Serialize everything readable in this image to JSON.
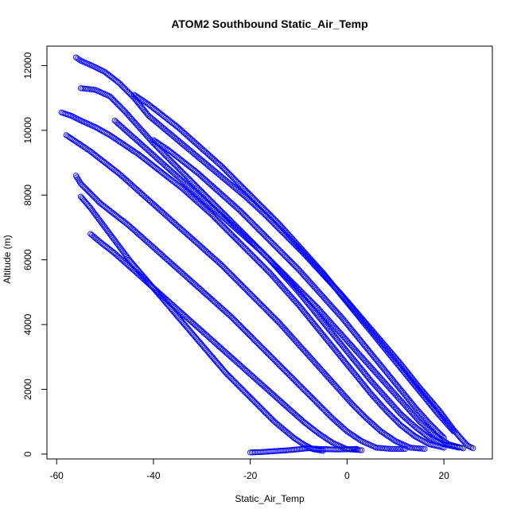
{
  "chart_data": {
    "type": "scatter",
    "title": "ATOM2 Southbound Static_Air_Temp",
    "xlabel": "Static_Air_Temp",
    "ylabel": "Altitude (m)",
    "xlim": [
      -62,
      30
    ],
    "ylim": [
      -150,
      12600
    ],
    "x_ticks": [
      -60,
      -40,
      -20,
      0,
      20
    ],
    "y_ticks": [
      0,
      2000,
      4000,
      6000,
      8000,
      10000,
      12000
    ],
    "point_color": "#0000ff",
    "marker": "open-circle",
    "grid": false,
    "legend": "none",
    "series": [
      {
        "x": [
          -56,
          -55,
          -52,
          -50,
          -47,
          -44,
          -41,
          -37,
          -33,
          -29,
          -25,
          -21,
          -17,
          -13,
          -9,
          -5,
          -1,
          3,
          7,
          11,
          15,
          19,
          22,
          24,
          25,
          26
        ],
        "y": [
          12250,
          12150,
          11950,
          11800,
          11450,
          11000,
          10450,
          9950,
          9450,
          8950,
          8450,
          7950,
          7400,
          6800,
          6200,
          5550,
          4900,
          4200,
          3500,
          2800,
          2050,
          1350,
          750,
          400,
          250,
          180
        ]
      },
      {
        "x": [
          -55,
          -52,
          -49,
          -46,
          -43,
          -40,
          -37,
          -34,
          -31,
          -28,
          -25,
          -22,
          -19,
          -16,
          -13,
          -10,
          -7,
          -4,
          -1,
          2,
          5,
          8,
          11,
          14,
          17,
          20,
          23
        ],
        "y": [
          11300,
          11250,
          11050,
          10600,
          10100,
          9600,
          9150,
          8700,
          8250,
          7800,
          7350,
          6900,
          6450,
          6000,
          5500,
          5000,
          4450,
          3900,
          3350,
          2800,
          2250,
          1750,
          1250,
          850,
          500,
          300,
          200
        ]
      },
      {
        "x": [
          -59,
          -57,
          -55,
          -52,
          -49,
          -46,
          -43,
          -40,
          -37,
          -34,
          -31,
          -28,
          -25,
          -22,
          -19,
          -16,
          -13,
          -10,
          -7,
          -4,
          -1,
          2,
          5,
          8,
          11,
          14,
          17,
          20
        ],
        "y": [
          10550,
          10450,
          10300,
          10100,
          9850,
          9550,
          9250,
          8900,
          8550,
          8200,
          7800,
          7400,
          6950,
          6500,
          6050,
          5600,
          5100,
          4600,
          4050,
          3500,
          2950,
          2400,
          1850,
          1350,
          900,
          550,
          300,
          200
        ]
      },
      {
        "x": [
          -58,
          -56,
          -53,
          -50,
          -47,
          -44,
          -41,
          -38,
          -35,
          -32,
          -29,
          -26,
          -23,
          -20,
          -17,
          -14,
          -11,
          -8,
          -5,
          -2,
          1,
          4,
          7,
          10,
          13,
          16
        ],
        "y": [
          9850,
          9650,
          9350,
          9000,
          8650,
          8250,
          7850,
          7450,
          7050,
          6650,
          6250,
          5850,
          5400,
          4950,
          4500,
          4050,
          3550,
          3050,
          2550,
          2050,
          1550,
          1100,
          700,
          400,
          200,
          160
        ]
      },
      {
        "x": [
          -56,
          -55,
          -53,
          -51,
          -48,
          -45,
          -42,
          -39,
          -36,
          -33,
          -30,
          -27,
          -24,
          -21,
          -18,
          -15,
          -12,
          -9,
          -6,
          -3,
          0,
          3,
          6,
          9,
          12
        ],
        "y": [
          8600,
          8350,
          8050,
          7750,
          7400,
          7050,
          6650,
          6250,
          5850,
          5450,
          5050,
          4650,
          4250,
          3800,
          3350,
          2900,
          2450,
          2000,
          1550,
          1100,
          700,
          400,
          200,
          160,
          160
        ]
      },
      {
        "x": [
          -55,
          -53,
          -51,
          -49,
          -47,
          -45,
          -43,
          -41,
          -39,
          -37,
          -35,
          -33,
          -31,
          -29,
          -27,
          -25,
          -23,
          -21,
          -19,
          -17,
          -15,
          -13,
          -11,
          -9,
          -7,
          -5
        ],
        "y": [
          7950,
          7600,
          7200,
          6800,
          6400,
          6000,
          5650,
          5300,
          4950,
          4600,
          4250,
          3900,
          3550,
          3200,
          2850,
          2500,
          2200,
          1900,
          1600,
          1300,
          1000,
          750,
          500,
          300,
          150,
          100
        ]
      },
      {
        "x": [
          -53,
          -51,
          -48,
          -45,
          -42,
          -39,
          -36,
          -33,
          -30,
          -27,
          -24,
          -21,
          -18,
          -15,
          -12,
          -9,
          -6,
          -3,
          0,
          3
        ],
        "y": [
          6800,
          6550,
          6200,
          5800,
          5400,
          5000,
          4600,
          4200,
          3800,
          3400,
          3000,
          2600,
          2200,
          1800,
          1400,
          1000,
          650,
          350,
          150,
          120
        ]
      },
      {
        "x": [
          -48,
          -45,
          -42,
          -39,
          -36,
          -33,
          -30,
          -27,
          -24,
          -21,
          -18,
          -15,
          -12,
          -9,
          -6,
          -3,
          0,
          3,
          6,
          9,
          12,
          15,
          18,
          21,
          24
        ],
        "y": [
          10300,
          9900,
          9500,
          9100,
          8700,
          8300,
          7900,
          7500,
          7100,
          6700,
          6300,
          5850,
          5400,
          4950,
          4500,
          4000,
          3500,
          3000,
          2500,
          2000,
          1500,
          1000,
          600,
          300,
          180
        ]
      },
      {
        "x": [
          -44,
          -41,
          -38,
          -35,
          -32,
          -29,
          -26,
          -23,
          -20,
          -17,
          -14,
          -11,
          -8,
          -5,
          -2,
          1,
          4,
          7,
          10,
          13,
          16,
          19,
          22
        ],
        "y": [
          11100,
          10800,
          10450,
          10100,
          9700,
          9300,
          8900,
          8450,
          8000,
          7550,
          7100,
          6600,
          6100,
          5600,
          5050,
          4500,
          3950,
          3400,
          2850,
          2300,
          1750,
          1200,
          700
        ]
      },
      {
        "x": [
          -40,
          -37,
          -34,
          -31,
          -28,
          -25,
          -22,
          -19,
          -16,
          -13,
          -10,
          -7,
          -4,
          -1,
          2,
          5,
          8,
          11,
          14,
          17,
          20
        ],
        "y": [
          9700,
          9400,
          9050,
          8700,
          8300,
          7900,
          7500,
          7050,
          6600,
          6150,
          5700,
          5200,
          4700,
          4200,
          3650,
          3100,
          2550,
          2000,
          1450,
          950,
          500
        ]
      },
      {
        "x": [
          -20,
          -18,
          -16,
          -14,
          -12,
          -10,
          -8,
          -6,
          -4,
          -2,
          0,
          2
        ],
        "y": [
          50,
          60,
          80,
          100,
          120,
          150,
          180,
          160,
          150,
          140,
          150,
          160
        ]
      }
    ]
  }
}
